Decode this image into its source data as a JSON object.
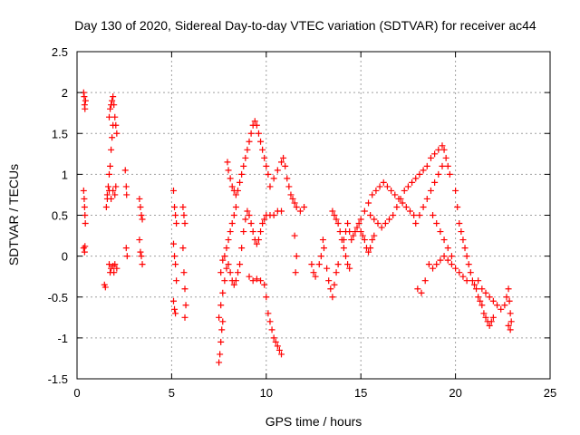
{
  "chart_data": {
    "type": "scatter",
    "title": "Day 130 of 2020, Sidereal Day-to-day VTEC variation (SDTVAR) for receiver ac44",
    "xlabel": "GPS time / hours",
    "ylabel": "SDTVAR / TECUs",
    "xlim": [
      0,
      25
    ],
    "ylim": [
      -1.5,
      2.5
    ],
    "xticks": [
      0,
      5,
      10,
      15,
      20,
      25
    ],
    "xtick_labels": [
      "0",
      "5",
      "10",
      "15",
      "20",
      "25"
    ],
    "yticks": [
      -1.5,
      -1,
      -0.5,
      0,
      0.5,
      1,
      1.5,
      2,
      2.5
    ],
    "ytick_labels": [
      "-1.5",
      "-1",
      "-0.5",
      "0",
      "0.5",
      "1",
      "1.5",
      "2",
      "2.5"
    ],
    "grid": true,
    "marker": "+",
    "marker_color": "#ff0000",
    "series": [
      {
        "name": "ac44",
        "points": [
          [
            0.35,
            2.0
          ],
          [
            0.38,
            1.95
          ],
          [
            0.4,
            1.85
          ],
          [
            0.42,
            1.8
          ],
          [
            0.45,
            1.9
          ],
          [
            0.35,
            0.8
          ],
          [
            0.38,
            0.7
          ],
          [
            0.4,
            0.6
          ],
          [
            0.42,
            0.5
          ],
          [
            0.44,
            0.4
          ],
          [
            0.35,
            0.1
          ],
          [
            0.4,
            0.05
          ],
          [
            0.42,
            0.12
          ],
          [
            1.45,
            -0.35
          ],
          [
            1.5,
            -0.38
          ],
          [
            1.55,
            0.6
          ],
          [
            1.6,
            0.7
          ],
          [
            1.65,
            0.85
          ],
          [
            1.7,
            1.0
          ],
          [
            1.75,
            1.1
          ],
          [
            1.8,
            1.3
          ],
          [
            1.85,
            1.45
          ],
          [
            1.9,
            1.6
          ],
          [
            1.7,
            1.7
          ],
          [
            1.75,
            1.8
          ],
          [
            1.8,
            1.85
          ],
          [
            1.85,
            1.9
          ],
          [
            1.9,
            1.95
          ],
          [
            1.95,
            1.85
          ],
          [
            2.0,
            1.7
          ],
          [
            2.05,
            1.6
          ],
          [
            2.1,
            1.5
          ],
          [
            1.6,
            0.75
          ],
          [
            1.7,
            0.8
          ],
          [
            1.8,
            0.7
          ],
          [
            1.9,
            0.8
          ],
          [
            2.0,
            0.75
          ],
          [
            2.05,
            0.85
          ],
          [
            1.7,
            -0.1
          ],
          [
            1.8,
            -0.15
          ],
          [
            1.9,
            -0.12
          ],
          [
            2.0,
            -0.1
          ],
          [
            2.1,
            -0.15
          ],
          [
            1.75,
            -0.2
          ],
          [
            1.95,
            -0.2
          ],
          [
            2.55,
            1.05
          ],
          [
            2.6,
            0.85
          ],
          [
            2.62,
            0.75
          ],
          [
            2.6,
            0.1
          ],
          [
            2.65,
            0.0
          ],
          [
            3.3,
            0.7
          ],
          [
            3.35,
            0.6
          ],
          [
            3.4,
            0.5
          ],
          [
            3.45,
            0.45
          ],
          [
            3.3,
            0.2
          ],
          [
            3.35,
            0.05
          ],
          [
            3.4,
            0.0
          ],
          [
            3.45,
            -0.1
          ],
          [
            5.1,
            0.8
          ],
          [
            5.15,
            0.6
          ],
          [
            5.2,
            0.5
          ],
          [
            5.25,
            0.4
          ],
          [
            5.1,
            0.15
          ],
          [
            5.15,
            0.0
          ],
          [
            5.2,
            -0.1
          ],
          [
            5.25,
            -0.3
          ],
          [
            5.1,
            -0.55
          ],
          [
            5.15,
            -0.65
          ],
          [
            5.2,
            -0.7
          ],
          [
            5.6,
            0.6
          ],
          [
            5.65,
            0.5
          ],
          [
            5.7,
            0.4
          ],
          [
            5.6,
            0.1
          ],
          [
            5.65,
            -0.2
          ],
          [
            5.7,
            -0.4
          ],
          [
            5.75,
            -0.6
          ],
          [
            5.7,
            -0.75
          ],
          [
            7.5,
            -1.3
          ],
          [
            7.55,
            -1.2
          ],
          [
            7.6,
            -1.05
          ],
          [
            7.65,
            -0.9
          ],
          [
            7.7,
            -0.8
          ],
          [
            7.5,
            -0.75
          ],
          [
            7.6,
            -0.6
          ],
          [
            7.7,
            -0.45
          ],
          [
            7.8,
            -0.3
          ],
          [
            7.9,
            -0.15
          ],
          [
            7.6,
            -0.2
          ],
          [
            7.7,
            -0.05
          ],
          [
            7.8,
            0.0
          ],
          [
            7.9,
            0.1
          ],
          [
            8.0,
            0.2
          ],
          [
            8.1,
            0.3
          ],
          [
            8.2,
            0.4
          ],
          [
            8.3,
            0.5
          ],
          [
            8.4,
            0.6
          ],
          [
            7.95,
            1.15
          ],
          [
            8.0,
            1.05
          ],
          [
            8.1,
            0.95
          ],
          [
            8.2,
            0.85
          ],
          [
            8.3,
            0.8
          ],
          [
            8.4,
            0.75
          ],
          [
            8.5,
            0.8
          ],
          [
            8.6,
            0.9
          ],
          [
            8.7,
            1.0
          ],
          [
            8.8,
            1.1
          ],
          [
            8.9,
            1.2
          ],
          [
            9.0,
            1.3
          ],
          [
            9.1,
            1.4
          ],
          [
            9.2,
            1.5
          ],
          [
            9.3,
            1.6
          ],
          [
            9.4,
            1.65
          ],
          [
            9.5,
            1.6
          ],
          [
            9.6,
            1.5
          ],
          [
            9.7,
            1.4
          ],
          [
            9.8,
            1.3
          ],
          [
            9.9,
            1.2
          ],
          [
            10.0,
            1.1
          ],
          [
            10.1,
            1.0
          ],
          [
            8.0,
            -0.1
          ],
          [
            8.1,
            -0.2
          ],
          [
            8.2,
            -0.3
          ],
          [
            8.3,
            -0.35
          ],
          [
            8.4,
            -0.3
          ],
          [
            8.5,
            -0.2
          ],
          [
            8.6,
            -0.1
          ],
          [
            8.7,
            0.1
          ],
          [
            8.8,
            0.3
          ],
          [
            8.9,
            0.45
          ],
          [
            9.0,
            0.55
          ],
          [
            9.1,
            0.5
          ],
          [
            9.2,
            0.4
          ],
          [
            9.3,
            0.3
          ],
          [
            9.4,
            0.2
          ],
          [
            9.5,
            0.15
          ],
          [
            9.6,
            0.2
          ],
          [
            9.7,
            0.3
          ],
          [
            9.8,
            0.4
          ],
          [
            9.9,
            0.45
          ],
          [
            10.0,
            0.5
          ],
          [
            10.2,
            0.5
          ],
          [
            10.4,
            0.5
          ],
          [
            10.6,
            0.55
          ],
          [
            10.8,
            0.55
          ],
          [
            9.1,
            -0.25
          ],
          [
            9.3,
            -0.3
          ],
          [
            9.5,
            -0.28
          ],
          [
            9.7,
            -0.3
          ],
          [
            9.9,
            -0.35
          ],
          [
            10.0,
            -0.5
          ],
          [
            10.1,
            -0.7
          ],
          [
            10.2,
            -0.8
          ],
          [
            10.3,
            -0.9
          ],
          [
            10.4,
            -1.0
          ],
          [
            10.5,
            -1.05
          ],
          [
            10.6,
            -1.1
          ],
          [
            10.7,
            -1.15
          ],
          [
            10.8,
            -1.2
          ],
          [
            10.2,
            0.85
          ],
          [
            10.4,
            0.95
          ],
          [
            10.6,
            1.05
          ],
          [
            10.8,
            1.15
          ],
          [
            10.9,
            1.2
          ],
          [
            11.0,
            1.1
          ],
          [
            11.1,
            0.95
          ],
          [
            11.2,
            0.85
          ],
          [
            11.3,
            0.75
          ],
          [
            11.4,
            0.7
          ],
          [
            11.5,
            0.65
          ],
          [
            11.6,
            0.6
          ],
          [
            11.8,
            0.55
          ],
          [
            12.0,
            0.6
          ],
          [
            11.5,
            0.25
          ],
          [
            11.6,
            0.0
          ],
          [
            11.55,
            -0.2
          ],
          [
            12.4,
            -0.1
          ],
          [
            12.5,
            -0.2
          ],
          [
            12.6,
            -0.25
          ],
          [
            12.8,
            -0.1
          ],
          [
            12.9,
            0.0
          ],
          [
            13.0,
            0.2
          ],
          [
            13.05,
            0.1
          ],
          [
            13.2,
            -0.15
          ],
          [
            13.3,
            -0.3
          ],
          [
            13.4,
            -0.4
          ],
          [
            13.5,
            -0.5
          ],
          [
            13.6,
            -0.35
          ],
          [
            13.7,
            -0.2
          ],
          [
            13.8,
            -0.1
          ],
          [
            13.5,
            0.55
          ],
          [
            13.6,
            0.5
          ],
          [
            13.7,
            0.45
          ],
          [
            13.8,
            0.4
          ],
          [
            13.9,
            0.3
          ],
          [
            14.0,
            0.2
          ],
          [
            14.1,
            0.1
          ],
          [
            14.2,
            0.0
          ],
          [
            14.3,
            -0.1
          ],
          [
            14.4,
            -0.15
          ],
          [
            14.1,
            0.2
          ],
          [
            14.2,
            0.3
          ],
          [
            14.3,
            0.4
          ],
          [
            14.4,
            0.3
          ],
          [
            14.5,
            0.2
          ],
          [
            14.6,
            0.25
          ],
          [
            14.7,
            0.3
          ],
          [
            14.8,
            0.35
          ],
          [
            14.9,
            0.4
          ],
          [
            15.0,
            0.3
          ],
          [
            15.1,
            0.25
          ],
          [
            15.2,
            0.2
          ],
          [
            15.3,
            0.1
          ],
          [
            15.4,
            0.05
          ],
          [
            15.5,
            0.1
          ],
          [
            15.6,
            0.2
          ],
          [
            15.7,
            0.25
          ],
          [
            15.0,
            0.45
          ],
          [
            15.2,
            0.55
          ],
          [
            15.4,
            0.65
          ],
          [
            15.6,
            0.75
          ],
          [
            15.8,
            0.8
          ],
          [
            16.0,
            0.85
          ],
          [
            16.2,
            0.9
          ],
          [
            16.4,
            0.85
          ],
          [
            16.6,
            0.8
          ],
          [
            16.8,
            0.75
          ],
          [
            17.0,
            0.7
          ],
          [
            17.2,
            0.65
          ],
          [
            17.4,
            0.6
          ],
          [
            17.6,
            0.55
          ],
          [
            17.8,
            0.5
          ],
          [
            15.5,
            0.5
          ],
          [
            15.7,
            0.45
          ],
          [
            15.9,
            0.4
          ],
          [
            16.1,
            0.35
          ],
          [
            16.3,
            0.4
          ],
          [
            16.5,
            0.45
          ],
          [
            16.7,
            0.5
          ],
          [
            16.9,
            0.6
          ],
          [
            17.1,
            0.7
          ],
          [
            17.3,
            0.8
          ],
          [
            17.5,
            0.85
          ],
          [
            17.7,
            0.9
          ],
          [
            17.9,
            0.95
          ],
          [
            18.1,
            1.0
          ],
          [
            18.3,
            1.05
          ],
          [
            18.5,
            1.1
          ],
          [
            18.7,
            1.2
          ],
          [
            18.9,
            1.25
          ],
          [
            19.1,
            1.3
          ],
          [
            19.3,
            1.35
          ],
          [
            19.4,
            1.3
          ],
          [
            19.5,
            1.2
          ],
          [
            19.6,
            1.1
          ],
          [
            19.7,
            1.0
          ],
          [
            17.9,
            0.4
          ],
          [
            18.1,
            0.5
          ],
          [
            18.3,
            0.6
          ],
          [
            18.5,
            0.7
          ],
          [
            18.7,
            0.8
          ],
          [
            18.9,
            0.9
          ],
          [
            19.1,
            1.0
          ],
          [
            19.3,
            1.1
          ],
          [
            18.8,
            0.5
          ],
          [
            19.0,
            0.4
          ],
          [
            19.2,
            0.3
          ],
          [
            19.4,
            0.2
          ],
          [
            19.6,
            0.1
          ],
          [
            19.8,
            0.0
          ],
          [
            18.0,
            -0.4
          ],
          [
            18.2,
            -0.45
          ],
          [
            18.4,
            -0.3
          ],
          [
            18.6,
            -0.1
          ],
          [
            18.8,
            -0.15
          ],
          [
            19.0,
            -0.1
          ],
          [
            19.2,
            -0.05
          ],
          [
            19.4,
            0.0
          ],
          [
            19.6,
            -0.05
          ],
          [
            19.8,
            -0.1
          ],
          [
            20.0,
            -0.15
          ],
          [
            20.2,
            -0.2
          ],
          [
            20.4,
            -0.25
          ],
          [
            20.6,
            -0.3
          ],
          [
            20.0,
            0.8
          ],
          [
            20.1,
            0.6
          ],
          [
            20.2,
            0.4
          ],
          [
            20.3,
            0.3
          ],
          [
            20.4,
            0.2
          ],
          [
            20.5,
            0.1
          ],
          [
            20.6,
            0.0
          ],
          [
            20.7,
            -0.1
          ],
          [
            20.8,
            -0.2
          ],
          [
            20.9,
            -0.3
          ],
          [
            21.0,
            -0.35
          ],
          [
            21.1,
            -0.4
          ],
          [
            21.2,
            -0.5
          ],
          [
            21.3,
            -0.55
          ],
          [
            21.4,
            -0.6
          ],
          [
            21.5,
            -0.7
          ],
          [
            21.6,
            -0.75
          ],
          [
            21.7,
            -0.8
          ],
          [
            21.8,
            -0.85
          ],
          [
            21.9,
            -0.8
          ],
          [
            22.0,
            -0.75
          ],
          [
            21.2,
            -0.3
          ],
          [
            21.4,
            -0.4
          ],
          [
            21.6,
            -0.45
          ],
          [
            21.8,
            -0.5
          ],
          [
            22.0,
            -0.55
          ],
          [
            22.2,
            -0.6
          ],
          [
            22.4,
            -0.65
          ],
          [
            22.6,
            -0.6
          ],
          [
            22.7,
            -0.5
          ],
          [
            22.8,
            -0.4
          ],
          [
            22.85,
            -0.55
          ],
          [
            22.9,
            -0.7
          ],
          [
            22.95,
            -0.8
          ],
          [
            22.9,
            -0.9
          ],
          [
            22.8,
            -0.85
          ]
        ]
      }
    ]
  }
}
